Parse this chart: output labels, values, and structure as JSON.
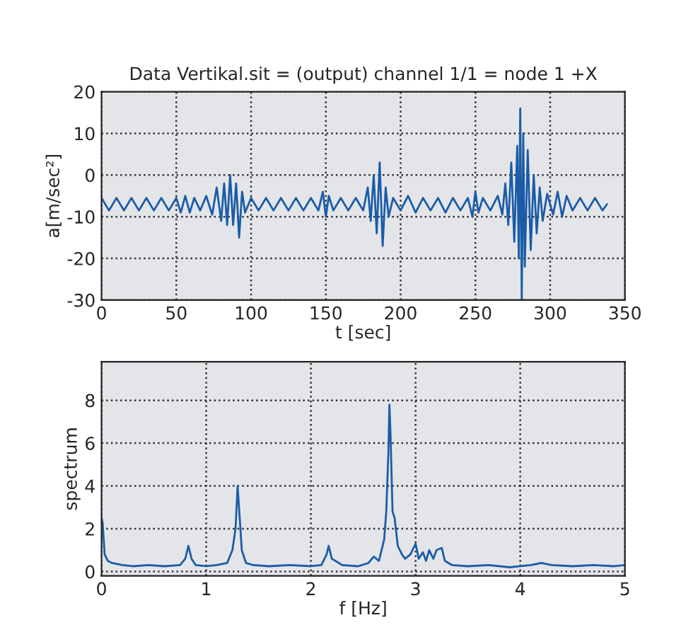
{
  "chart_data": [
    {
      "type": "line",
      "title": "Data Vertikal.sit = (output) channel 1/1 = node 1 +X",
      "xlabel": "t [sec]",
      "ylabel": "a[m/sec²]",
      "xlim": [
        0,
        350
      ],
      "xticks": [
        0,
        50,
        100,
        150,
        200,
        250,
        300,
        350
      ],
      "ylim": [
        -30,
        20
      ],
      "yticks": [
        -30,
        -20,
        -10,
        0,
        10,
        20
      ],
      "grid": true,
      "line_style": "solid",
      "series": [
        {
          "color": "#1a5ca8",
          "x": [
            0,
            5,
            10,
            15,
            20,
            25,
            30,
            35,
            40,
            45,
            50,
            53,
            56,
            59,
            62,
            66,
            70,
            74,
            77,
            80,
            82,
            84,
            86,
            88,
            90,
            92,
            94,
            96,
            100,
            105,
            110,
            115,
            120,
            125,
            130,
            135,
            140,
            145,
            148,
            150,
            152,
            155,
            160,
            165,
            170,
            175,
            178,
            180,
            182,
            184,
            186,
            188,
            190,
            192,
            195,
            200,
            205,
            210,
            215,
            220,
            225,
            230,
            235,
            240,
            245,
            248,
            250,
            252,
            255,
            260,
            265,
            268,
            270,
            272,
            274,
            276,
            278,
            279,
            280,
            281,
            282,
            283,
            285,
            287,
            289,
            291,
            293,
            295,
            298,
            302,
            305,
            308,
            311,
            315,
            320,
            325,
            330,
            335,
            338
          ],
          "values": [
            -5.5,
            -8.5,
            -5.5,
            -8.5,
            -5.5,
            -8.5,
            -5.5,
            -8.5,
            -5.5,
            -8.5,
            -5.5,
            -9,
            -5,
            -9,
            -5.5,
            -8.5,
            -5,
            -9.5,
            -3,
            -11,
            -2,
            -12,
            0,
            -12,
            -2,
            -15,
            -4,
            -9,
            -5.5,
            -8.5,
            -5.5,
            -8.5,
            -5.5,
            -8.5,
            -5.5,
            -8.5,
            -5.5,
            -8.5,
            -4,
            -10,
            -5,
            -8.5,
            -5.5,
            -8.5,
            -5.5,
            -8.5,
            -3,
            -11,
            0,
            -14,
            3,
            -17,
            -3,
            -10,
            -5.5,
            -8.5,
            -5,
            -9,
            -5.5,
            -8.5,
            -5.5,
            -9,
            -5.5,
            -8.5,
            -5.5,
            -10,
            -4,
            -9,
            -5.5,
            -8.5,
            -5,
            -9.5,
            -2,
            -12,
            3,
            -16,
            7,
            -20,
            16,
            -30,
            10,
            -22,
            6,
            -18,
            0,
            -14,
            -3,
            -11,
            -4.5,
            -9.5,
            -4,
            -10,
            -5,
            -8.5,
            -5.5,
            -8.5,
            -5.5,
            -8.5,
            -7
          ]
        }
      ]
    },
    {
      "type": "line",
      "xlabel": "f [Hz]",
      "ylabel": "spectrum",
      "xlim": [
        0,
        5
      ],
      "xticks": [
        0,
        1,
        2,
        3,
        4,
        5
      ],
      "ylim": [
        -0.2,
        9.8
      ],
      "yticks": [
        0,
        2,
        4,
        6,
        8
      ],
      "grid": true,
      "line_style": "solid",
      "series": [
        {
          "color": "#1a5ca8",
          "x": [
            0,
            0.01,
            0.03,
            0.06,
            0.1,
            0.2,
            0.3,
            0.45,
            0.6,
            0.75,
            0.8,
            0.83,
            0.86,
            0.9,
            1.0,
            1.1,
            1.2,
            1.25,
            1.28,
            1.3,
            1.32,
            1.34,
            1.38,
            1.45,
            1.6,
            1.8,
            2.0,
            2.1,
            2.15,
            2.17,
            2.2,
            2.3,
            2.45,
            2.55,
            2.6,
            2.65,
            2.7,
            2.72,
            2.74,
            2.75,
            2.76,
            2.78,
            2.8,
            2.83,
            2.87,
            2.9,
            2.95,
            3.0,
            3.03,
            3.07,
            3.1,
            3.13,
            3.17,
            3.2,
            3.25,
            3.28,
            3.35,
            3.5,
            3.7,
            3.9,
            4.0,
            4.1,
            4.2,
            4.3,
            4.5,
            4.7,
            4.9,
            5.0
          ],
          "values": [
            2.5,
            2.3,
            0.8,
            0.5,
            0.4,
            0.3,
            0.25,
            0.3,
            0.25,
            0.3,
            0.6,
            1.2,
            0.6,
            0.3,
            0.25,
            0.3,
            0.4,
            1.0,
            2.0,
            4.0,
            2.5,
            1.0,
            0.4,
            0.3,
            0.25,
            0.3,
            0.25,
            0.3,
            0.8,
            1.2,
            0.6,
            0.3,
            0.25,
            0.4,
            0.7,
            0.5,
            1.5,
            2.8,
            5.5,
            7.8,
            6.5,
            2.8,
            2.5,
            1.2,
            0.8,
            0.6,
            0.8,
            1.3,
            0.6,
            0.9,
            0.5,
            1.0,
            0.6,
            1.0,
            1.1,
            0.5,
            0.3,
            0.25,
            0.3,
            0.2,
            0.25,
            0.3,
            0.4,
            0.3,
            0.25,
            0.3,
            0.25,
            0.3
          ]
        }
      ]
    }
  ]
}
